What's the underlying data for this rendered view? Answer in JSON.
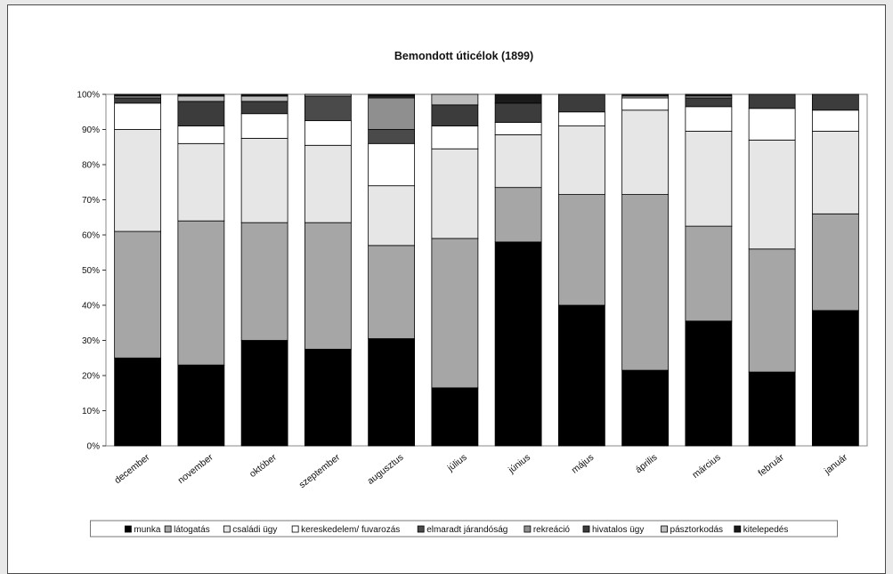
{
  "chart_data": {
    "type": "bar",
    "stacked": true,
    "normalized": true,
    "title": "Bemondott úticélok (1899)",
    "xlabel": "",
    "ylabel": "",
    "ylim": [
      0,
      100
    ],
    "y_ticks": [
      "0%",
      "10%",
      "20%",
      "30%",
      "40%",
      "50%",
      "60%",
      "70%",
      "80%",
      "90%",
      "100%"
    ],
    "grid": false,
    "legend_position": "bottom",
    "categories": [
      "december",
      "november",
      "október",
      "szeptember",
      "augusztus",
      "július",
      "június",
      "május",
      "április",
      "március",
      "február",
      "január"
    ],
    "series": [
      {
        "name": "munka",
        "color": "#000000",
        "values": [
          25,
          23,
          30,
          27.5,
          30.5,
          16.5,
          58,
          40,
          21.5,
          35.5,
          21,
          38.5
        ]
      },
      {
        "name": "látogatás",
        "color": "#a6a6a6",
        "values": [
          36,
          41,
          33.5,
          36,
          26.5,
          42.5,
          15.5,
          31.5,
          50,
          27,
          35,
          27.5
        ]
      },
      {
        "name": "családi ügy",
        "color": "#e6e6e6",
        "values": [
          29,
          22,
          24,
          22,
          17,
          25.5,
          15,
          19.5,
          24,
          27,
          31,
          23.5
        ]
      },
      {
        "name": "kereskedelem/ fuvarozás",
        "color": "#ffffff",
        "values": [
          7.5,
          5,
          7,
          7,
          12,
          6.5,
          3.5,
          4,
          3.5,
          7,
          9,
          6
        ]
      },
      {
        "name": "elmaradt járandóság",
        "color": "#4a4a4a",
        "values": [
          0,
          0,
          0,
          7,
          4,
          0,
          0,
          0,
          0,
          0,
          0,
          0
        ]
      },
      {
        "name": "rekreáció",
        "color": "#8f8f8f",
        "values": [
          0,
          0,
          0,
          0,
          9,
          0,
          0,
          0,
          0,
          0,
          0,
          0
        ]
      },
      {
        "name": "hivatalos ügy",
        "color": "#3c3c3c",
        "values": [
          1.5,
          7,
          3.5,
          0,
          0.5,
          6,
          5.5,
          5,
          0,
          2.5,
          4,
          4.5
        ]
      },
      {
        "name": "pásztorkodás",
        "color": "#bdbdbd",
        "values": [
          0.5,
          1.5,
          1.5,
          0.5,
          0,
          3,
          0,
          0,
          0.5,
          0.5,
          0,
          0
        ]
      },
      {
        "name": "kitelepedés",
        "color": "#1a1a1a",
        "values": [
          0.5,
          0.5,
          0.5,
          0,
          0.5,
          0,
          2.5,
          0,
          0.5,
          0.5,
          0,
          0
        ]
      }
    ]
  }
}
